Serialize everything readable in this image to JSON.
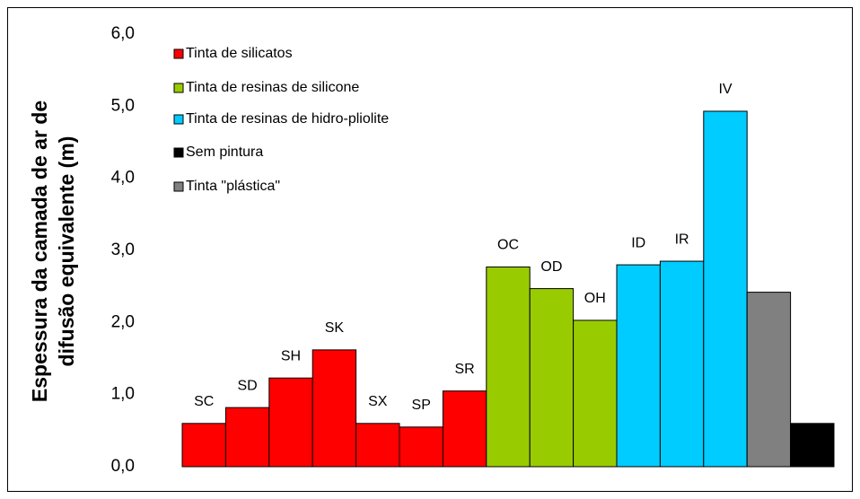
{
  "chart_data": {
    "type": "bar",
    "ylabel": [
      "Espessura da camada de ar de",
      "difusão equivalente (m)"
    ],
    "categories": [
      "SC",
      "SD",
      "SH",
      "SK",
      "SX",
      "SP",
      "SR",
      "OC",
      "OD",
      "OH",
      "ID",
      "IR",
      "IV",
      null,
      null
    ],
    "series": [
      {
        "name": "Tinta de silicatos",
        "color": "#ff0000",
        "values": [
          0.6,
          0.82,
          1.23,
          1.62,
          0.6,
          0.55,
          1.05,
          null,
          null,
          null,
          null,
          null,
          null,
          null,
          null
        ]
      },
      {
        "name": "Tinta de resinas de silicone",
        "color": "#99cc00",
        "values": [
          null,
          null,
          null,
          null,
          null,
          null,
          null,
          2.77,
          2.47,
          2.03,
          null,
          null,
          null,
          null,
          null
        ]
      },
      {
        "name": "Tinta de resinas de hidro-pliolite",
        "color": "#00ccff",
        "values": [
          null,
          null,
          null,
          null,
          null,
          null,
          null,
          null,
          null,
          null,
          2.8,
          2.85,
          4.93,
          null,
          null
        ]
      },
      {
        "name": "Sem pintura",
        "color": "#000000",
        "values": [
          null,
          null,
          null,
          null,
          null,
          null,
          null,
          null,
          null,
          null,
          null,
          null,
          null,
          null,
          0.6
        ]
      },
      {
        "name": "Tinta \"plástica\"",
        "color": "#808080",
        "values": [
          null,
          null,
          null,
          null,
          null,
          null,
          null,
          null,
          null,
          null,
          null,
          null,
          null,
          2.42,
          null
        ]
      }
    ],
    "ylim": [
      0,
      6
    ],
    "yticks": [
      {
        "value": 0,
        "label": "0,0"
      },
      {
        "value": 1,
        "label": "1,0"
      },
      {
        "value": 2,
        "label": "2,0"
      },
      {
        "value": 3,
        "label": "3,0"
      },
      {
        "value": 4,
        "label": "4,0"
      },
      {
        "value": 5,
        "label": "5,0"
      },
      {
        "value": 6,
        "label": "6,0"
      }
    ],
    "legend": "upper left"
  }
}
